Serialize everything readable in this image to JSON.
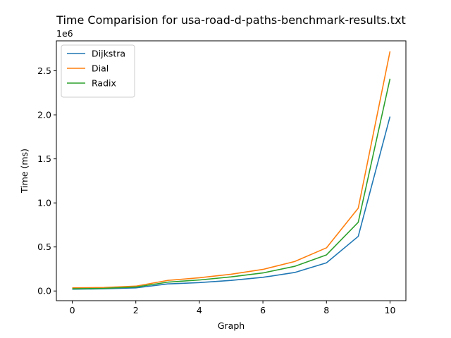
{
  "chart_data": {
    "type": "line",
    "title": "Time Comparision for usa-road-d-paths-benchmark-results.txt",
    "xlabel": "Graph",
    "ylabel": "Time (ms)",
    "y_offset_label": "1e6",
    "xlim": [
      -0.5,
      10.5
    ],
    "ylim": [
      -0.11,
      2.84
    ],
    "x_ticks": [
      0,
      2,
      4,
      6,
      8,
      10
    ],
    "x_tick_labels": [
      "0",
      "2",
      "4",
      "6",
      "8",
      "10"
    ],
    "y_ticks": [
      0.0,
      0.5,
      1.0,
      1.5,
      2.0,
      2.5
    ],
    "y_tick_labels": [
      "0.0",
      "0.5",
      "1.0",
      "1.5",
      "2.0",
      "2.5"
    ],
    "y_unit_multiplier": 1000000,
    "grid": false,
    "legend_position": "upper-left",
    "x": [
      0,
      1,
      2,
      3,
      4,
      5,
      6,
      7,
      8,
      9,
      10
    ],
    "series": [
      {
        "name": "Dijkstra",
        "color": "#1f77b4",
        "values": [
          0.02,
          0.025,
          0.035,
          0.08,
          0.095,
          0.12,
          0.155,
          0.21,
          0.32,
          0.62,
          1.98
        ]
      },
      {
        "name": "Dial",
        "color": "#ff7f0e",
        "values": [
          0.035,
          0.04,
          0.055,
          0.12,
          0.15,
          0.19,
          0.245,
          0.335,
          0.49,
          0.94,
          2.72
        ]
      },
      {
        "name": "Radix",
        "color": "#2ca02c",
        "values": [
          0.025,
          0.03,
          0.045,
          0.1,
          0.125,
          0.16,
          0.205,
          0.28,
          0.41,
          0.78,
          2.41
        ]
      }
    ]
  }
}
